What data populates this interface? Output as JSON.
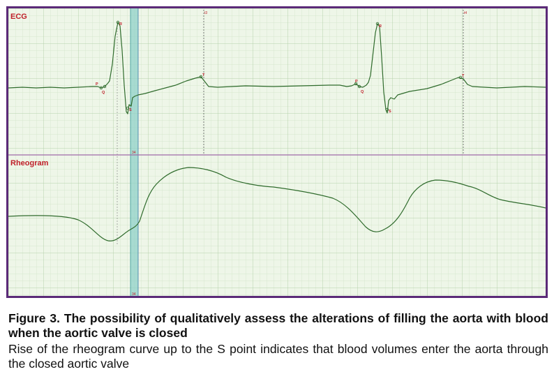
{
  "figure": {
    "ecg_label": "ECG",
    "rheo_label": "Rheogram",
    "markers": {
      "t3": "t3",
      "t4": "t4",
      "t34_top": "34",
      "t34_bottom": "34"
    },
    "points": [
      "P",
      "Q",
      "R",
      "S",
      "T",
      "P",
      "Q",
      "R",
      "S",
      "T"
    ]
  },
  "caption": {
    "title": "Figure 3. The possibility of qualitatively assess the alterations of filling the aorta with blood when the aortic valve is closed",
    "body": "Rise of the rheogram curve up to the S point indicates that blood volumes enter the aorta through the closed aortic valve"
  },
  "colors": {
    "border": "#5b2a78",
    "background": "#eef6e8",
    "grid_minor": "#cfe3c6",
    "grid_major": "#b5d1ab",
    "trace": "#2f6b2c",
    "point_label": "#c0202a",
    "band": "#8fd0c8",
    "divider": "#a06aa8"
  }
}
